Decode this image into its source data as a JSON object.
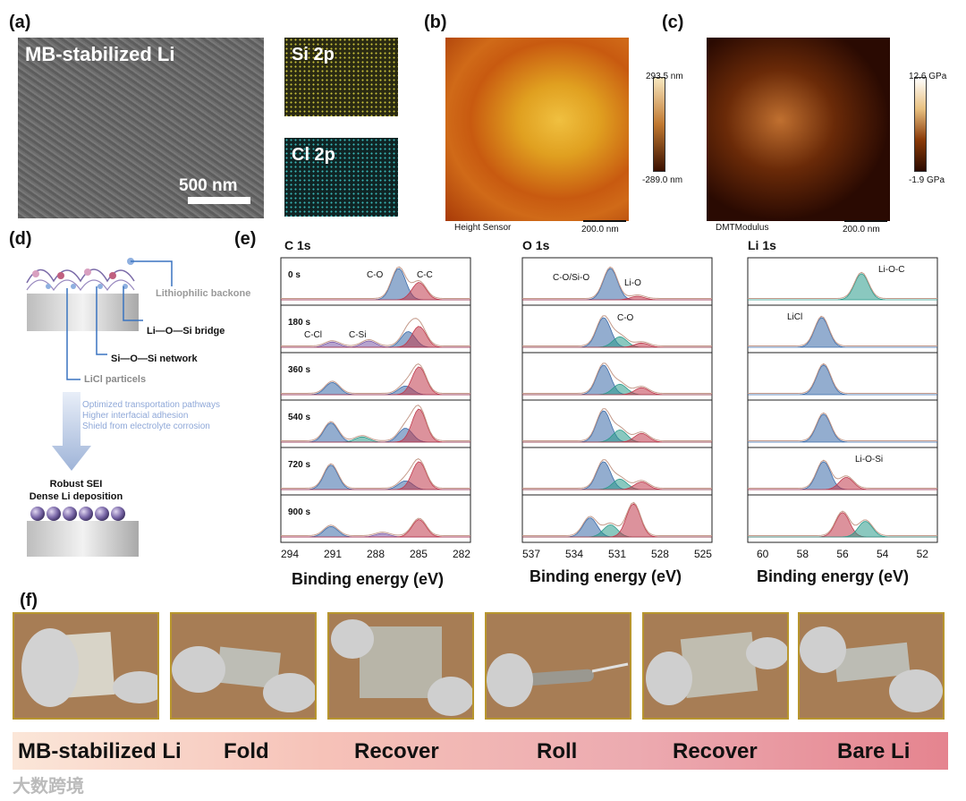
{
  "panel_labels": {
    "a": "(a)",
    "b": "(b)",
    "c": "(c)",
    "d": "(d)",
    "e": "(e)",
    "f": "(f)"
  },
  "panel_a": {
    "sem_title": "MB-stabilized Li",
    "scale": "500 nm",
    "map_si": "Si 2p",
    "map_cl": "Cl 2p"
  },
  "panel_b": {
    "cbar_top": "293.5 nm",
    "cbar_bottom": "-289.0 nm",
    "sensor": "Height Sensor",
    "scale": "200.0 nm"
  },
  "panel_c": {
    "cbar_top": "12.6 GPa",
    "cbar_bottom": "-1.9 GPa",
    "sensor": "DMTModulus",
    "scale": "200.0 nm"
  },
  "panel_d": {
    "labels": [
      "Lithiophilic backone",
      "Li—O—Si bridge",
      "Si—O—Si network",
      "LiCl particels"
    ],
    "benefits": [
      "Optimized transportation pathways",
      "Higher interfacial adhesion",
      "Shield from electrolyte corrosion"
    ],
    "result": [
      "Robust SEI",
      "Dense Li deposition"
    ]
  },
  "chart_data": [
    {
      "type": "line",
      "title": "C 1s",
      "xlabel": "Binding energy (eV)",
      "xlim": [
        295,
        281
      ],
      "xticks": [
        "294",
        "291",
        "288",
        "285",
        "282"
      ],
      "stack_labels": [
        "0 s",
        "180 s",
        "360 s",
        "540 s",
        "720 s",
        "900 s"
      ],
      "peak_labels": [
        "C-O",
        "C-C",
        "C-Cl",
        "C-Si"
      ],
      "series": [
        {
          "name": "0 s",
          "peaks": [
            {
              "center": 286.3,
              "height": 0.9,
              "color": "#3a6aa8"
            },
            {
              "center": 284.8,
              "height": 0.5,
              "color": "#c0394b"
            }
          ]
        },
        {
          "name": "180 s",
          "peaks": [
            {
              "center": 291.2,
              "height": 0.15,
              "color": "#7a5aa8"
            },
            {
              "center": 288.5,
              "height": 0.18,
              "color": "#7a5aa8"
            },
            {
              "center": 285.6,
              "height": 0.45,
              "color": "#3a6aa8"
            },
            {
              "center": 284.8,
              "height": 0.6,
              "color": "#c0394b"
            }
          ]
        },
        {
          "name": "360 s",
          "peaks": [
            {
              "center": 291.2,
              "height": 0.35,
              "color": "#3a6aa8"
            },
            {
              "center": 285.8,
              "height": 0.25,
              "color": "#3a6aa8"
            },
            {
              "center": 284.8,
              "height": 0.8,
              "color": "#c0394b"
            }
          ]
        },
        {
          "name": "540 s",
          "peaks": [
            {
              "center": 291.3,
              "height": 0.55,
              "color": "#3a6aa8"
            },
            {
              "center": 289.0,
              "height": 0.15,
              "color": "#2a9a8a"
            },
            {
              "center": 285.8,
              "height": 0.4,
              "color": "#3a6aa8"
            },
            {
              "center": 284.8,
              "height": 0.95,
              "color": "#c0394b"
            }
          ]
        },
        {
          "name": "720 s",
          "peaks": [
            {
              "center": 291.3,
              "height": 0.7,
              "color": "#3a6aa8"
            },
            {
              "center": 285.8,
              "height": 0.25,
              "color": "#3a6aa8"
            },
            {
              "center": 284.8,
              "height": 0.8,
              "color": "#c0394b"
            }
          ]
        },
        {
          "name": "900 s",
          "peaks": [
            {
              "center": 291.3,
              "height": 0.3,
              "color": "#3a6aa8"
            },
            {
              "center": 287.5,
              "height": 0.1,
              "color": "#7a5aa8"
            },
            {
              "center": 284.8,
              "height": 0.5,
              "color": "#c0394b"
            }
          ]
        }
      ]
    },
    {
      "type": "line",
      "title": "O 1s",
      "xlabel": "Binding energy (eV)",
      "xlim": [
        538,
        524
      ],
      "xticks": [
        "537",
        "534",
        "531",
        "528",
        "525"
      ],
      "peak_labels": [
        "C-O/Si-O",
        "Li-O",
        "C-O"
      ],
      "series": [
        {
          "name": "0 s",
          "peaks": [
            {
              "center": 531.5,
              "height": 0.9,
              "color": "#3a6aa8"
            },
            {
              "center": 529.5,
              "height": 0.1,
              "color": "#c0394b"
            }
          ]
        },
        {
          "name": "180 s",
          "peaks": [
            {
              "center": 532.0,
              "height": 0.85,
              "color": "#3a6aa8"
            },
            {
              "center": 530.8,
              "height": 0.3,
              "color": "#2a9a8a"
            },
            {
              "center": 529.2,
              "height": 0.12,
              "color": "#c0394b"
            }
          ]
        },
        {
          "name": "360 s",
          "peaks": [
            {
              "center": 532.0,
              "height": 0.85,
              "color": "#3a6aa8"
            },
            {
              "center": 530.8,
              "height": 0.3,
              "color": "#2a9a8a"
            },
            {
              "center": 529.2,
              "height": 0.2,
              "color": "#c0394b"
            }
          ]
        },
        {
          "name": "540 s",
          "peaks": [
            {
              "center": 532.0,
              "height": 0.9,
              "color": "#3a6aa8"
            },
            {
              "center": 530.8,
              "height": 0.35,
              "color": "#2a9a8a"
            },
            {
              "center": 529.2,
              "height": 0.25,
              "color": "#c0394b"
            }
          ]
        },
        {
          "name": "720 s",
          "peaks": [
            {
              "center": 532.0,
              "height": 0.8,
              "color": "#3a6aa8"
            },
            {
              "center": 530.8,
              "height": 0.3,
              "color": "#2a9a8a"
            },
            {
              "center": 529.2,
              "height": 0.22,
              "color": "#c0394b"
            }
          ]
        },
        {
          "name": "900 s",
          "peaks": [
            {
              "center": 533.0,
              "height": 0.55,
              "color": "#3a6aa8"
            },
            {
              "center": 531.5,
              "height": 0.35,
              "color": "#2a9a8a"
            },
            {
              "center": 529.8,
              "height": 0.95,
              "color": "#c0394b"
            }
          ]
        }
      ]
    },
    {
      "type": "line",
      "title": "Li 1s",
      "xlabel": "Binding energy (eV)",
      "xlim": [
        61,
        51
      ],
      "xticks": [
        "60",
        "58",
        "56",
        "54",
        "52"
      ],
      "peak_labels": [
        "Li-O-C",
        "LiCl",
        "Li-O-Si"
      ],
      "series": [
        {
          "name": "0 s",
          "peaks": [
            {
              "center": 55.0,
              "height": 0.75,
              "color": "#2a9a8a"
            }
          ]
        },
        {
          "name": "180 s",
          "peaks": [
            {
              "center": 57.1,
              "height": 0.85,
              "color": "#3a6aa8"
            }
          ]
        },
        {
          "name": "360 s",
          "peaks": [
            {
              "center": 57.0,
              "height": 0.85,
              "color": "#3a6aa8"
            }
          ]
        },
        {
          "name": "540 s",
          "peaks": [
            {
              "center": 57.0,
              "height": 0.8,
              "color": "#3a6aa8"
            }
          ]
        },
        {
          "name": "720 s",
          "peaks": [
            {
              "center": 57.0,
              "height": 0.8,
              "color": "#3a6aa8"
            },
            {
              "center": 55.8,
              "height": 0.35,
              "color": "#c0394b"
            }
          ]
        },
        {
          "name": "900 s",
          "peaks": [
            {
              "center": 56.0,
              "height": 0.7,
              "color": "#c0394b"
            },
            {
              "center": 54.8,
              "height": 0.45,
              "color": "#2a9a8a"
            }
          ]
        }
      ]
    }
  ],
  "panel_f": {
    "steps": [
      "MB-stabilized Li",
      "Fold",
      "Recover",
      "Roll",
      "Recover",
      "Bare Li"
    ]
  },
  "watermark": "大数跨境"
}
